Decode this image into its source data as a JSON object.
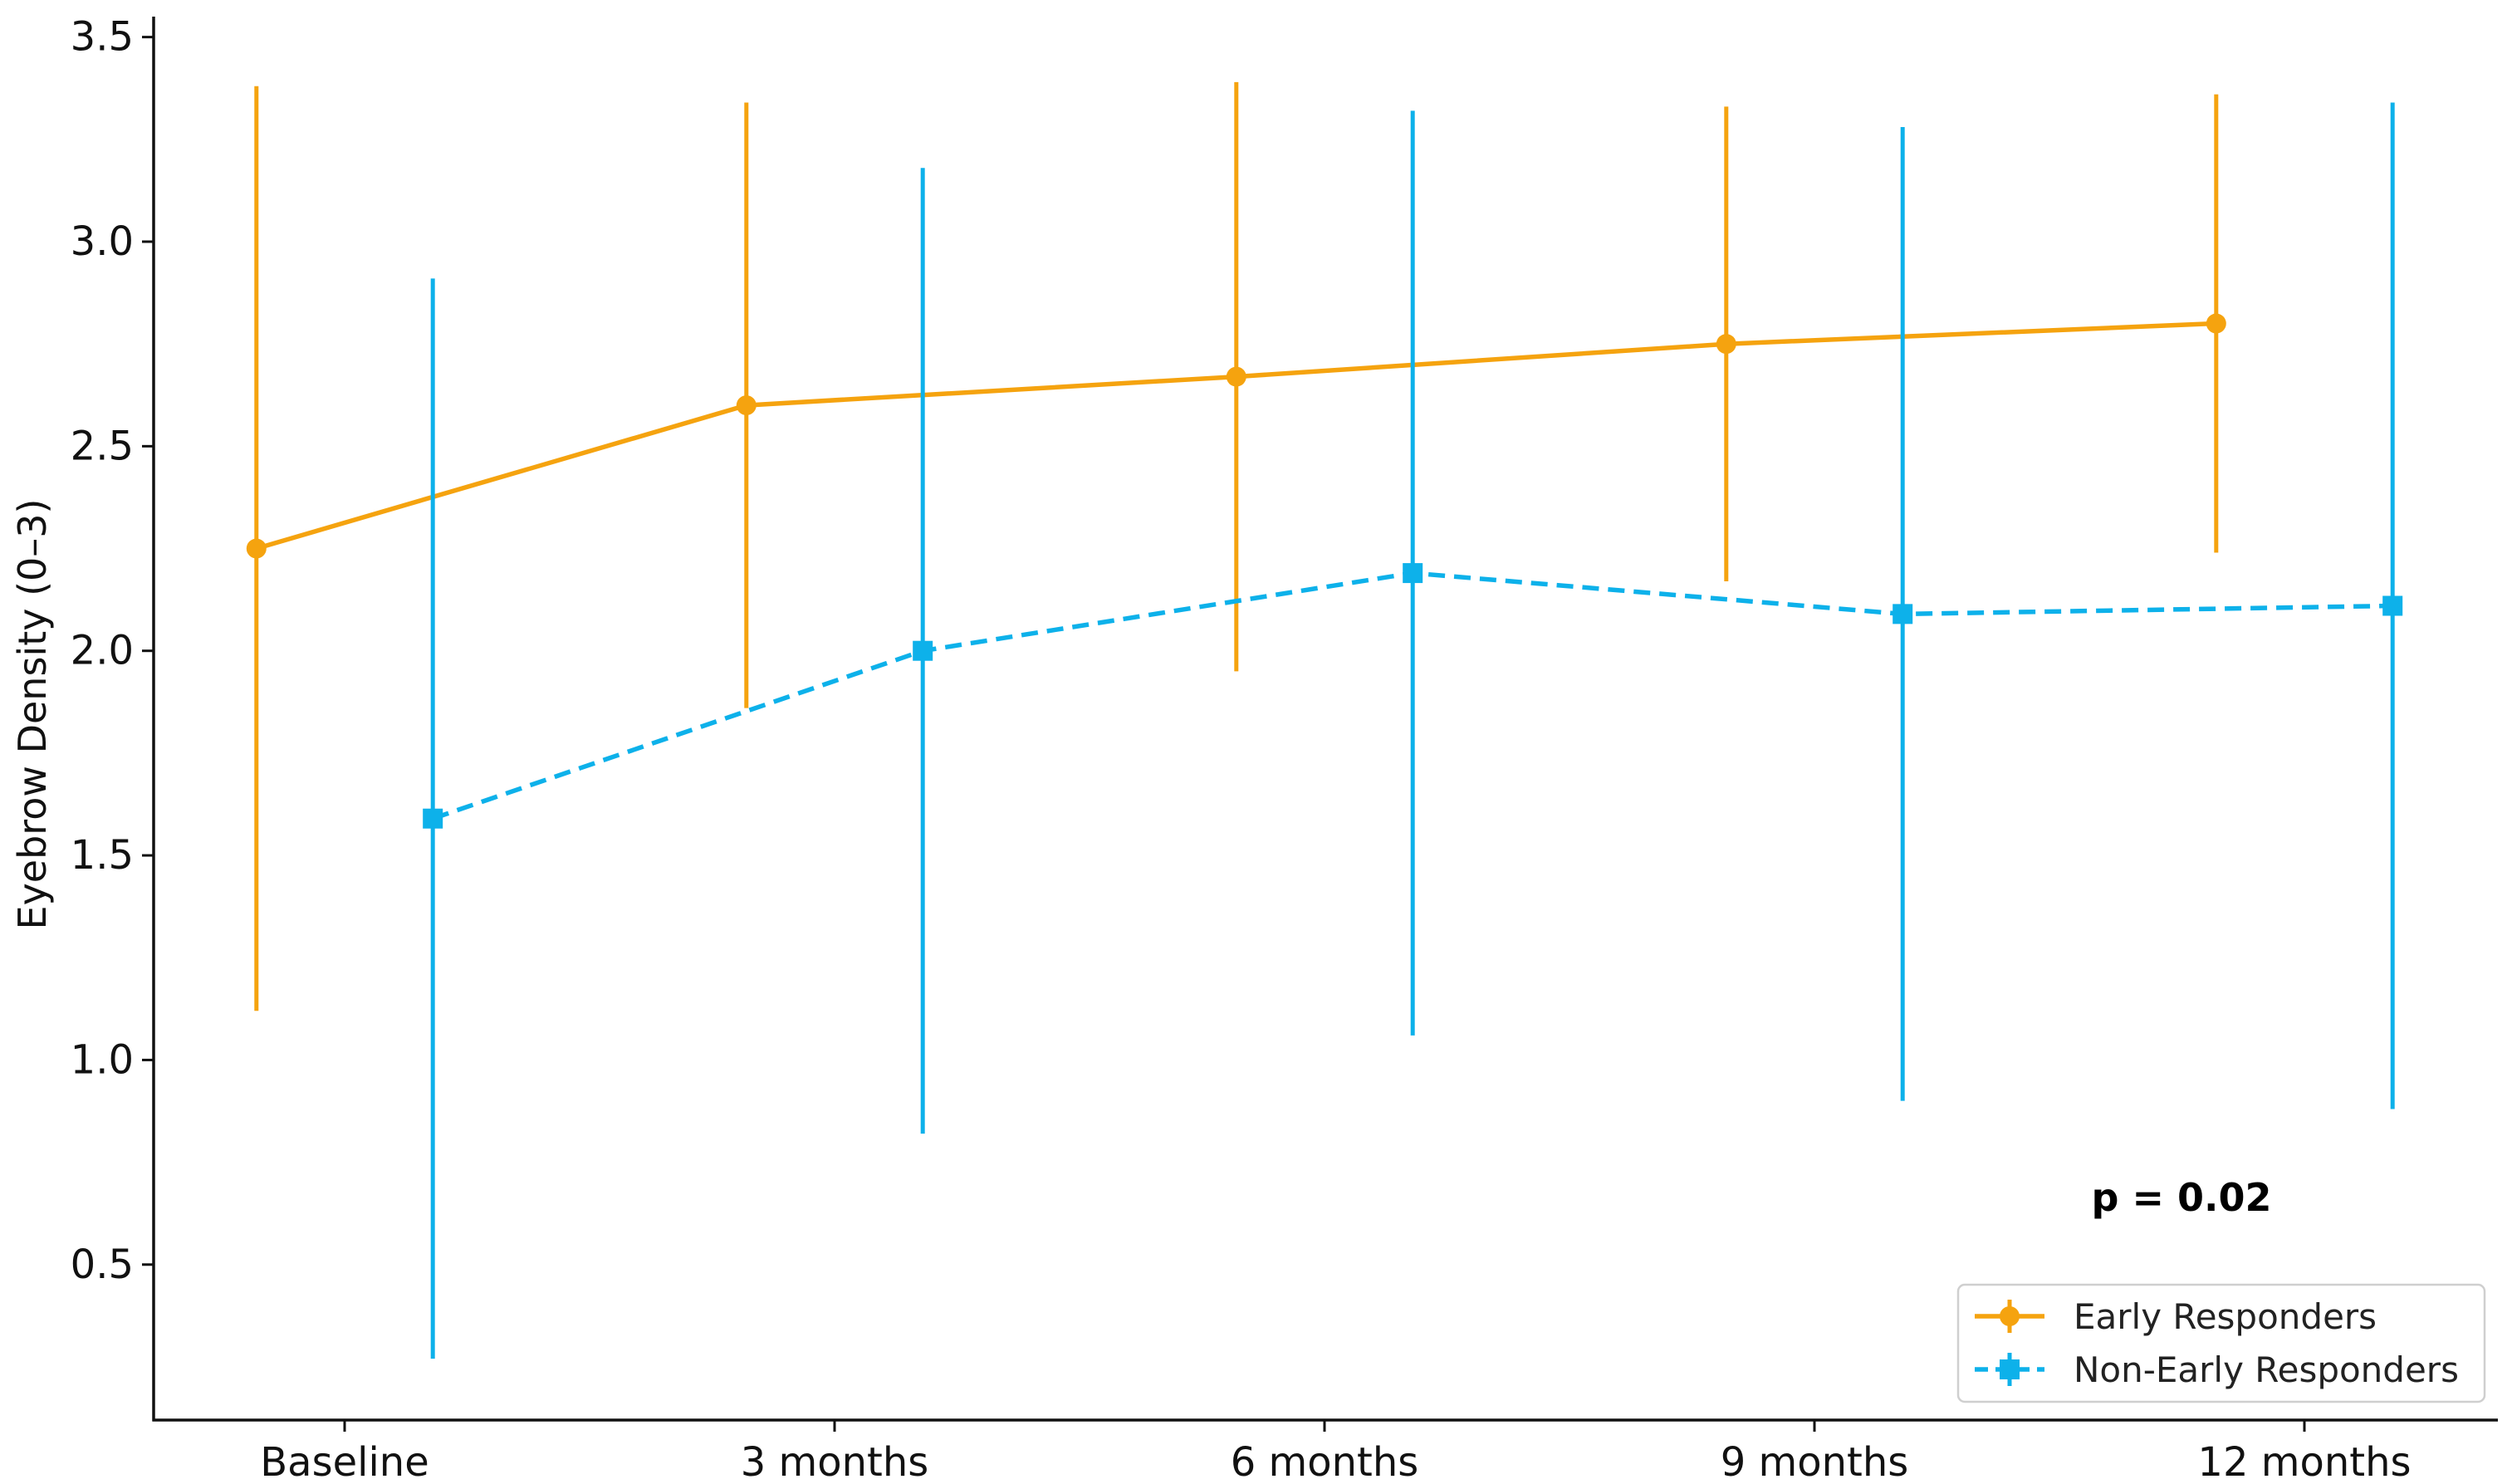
{
  "colors": {
    "early": "#F5A30F",
    "non_early": "#0DB1EA",
    "axis": "#111111"
  },
  "chart_data": {
    "type": "line",
    "title": "",
    "xlabel": "",
    "ylabel": "Eyebrow Density (0–3)",
    "categories": [
      "Baseline",
      "3 months",
      "6 months",
      "9 months",
      "12 months"
    ],
    "yticks": [
      "0.5",
      "1.0",
      "1.5",
      "2.0",
      "2.5",
      "3.0",
      "3.5"
    ],
    "ylim": [
      0.12,
      3.55
    ],
    "grid": false,
    "legend_position": "bottom-right",
    "series": [
      {
        "name": "Early Responders",
        "marker": "circle",
        "line_style": "solid",
        "x_offset": -0.18,
        "values": [
          2.25,
          2.6,
          2.67,
          2.75,
          2.8
        ],
        "error_low": [
          1.12,
          1.86,
          1.95,
          2.17,
          2.24
        ],
        "error_high": [
          3.38,
          3.34,
          3.39,
          3.33,
          3.36
        ]
      },
      {
        "name": "Non-Early Responders",
        "marker": "square",
        "line_style": "dashed",
        "x_offset": 0.18,
        "values": [
          1.59,
          2.0,
          2.19,
          2.09,
          2.11
        ],
        "error_low": [
          0.27,
          0.82,
          1.06,
          0.9,
          0.88
        ],
        "error_high": [
          2.91,
          3.18,
          3.32,
          3.28,
          3.34
        ]
      }
    ],
    "annotations": [
      {
        "text": "p = 0.02",
        "x": 3.7,
        "y": 0.65
      }
    ]
  }
}
